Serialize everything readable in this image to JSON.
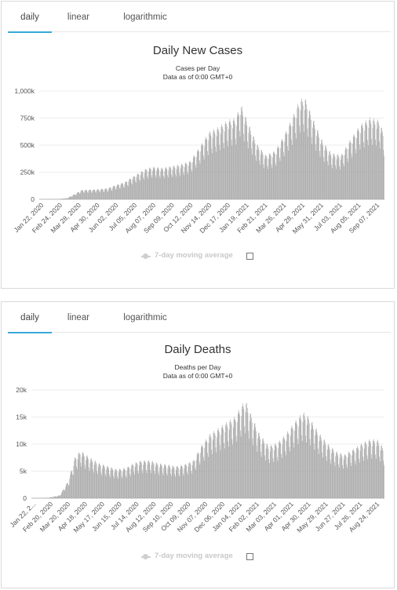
{
  "panels": [
    {
      "tabs": [
        {
          "label": "daily",
          "active": true
        },
        {
          "label": "linear",
          "active": false
        },
        {
          "label": "logarithmic",
          "active": false
        }
      ],
      "legend": {
        "label": "7-day moving average",
        "checked": false
      },
      "chart_data": {
        "type": "bar",
        "title": "Daily New Cases",
        "subtitle_lines": [
          "Cases per Day",
          "Data as of 0:00 GMT+0"
        ],
        "y_ticks": [
          {
            "value": 0,
            "label": "0"
          },
          {
            "value": 250000,
            "label": "250k"
          },
          {
            "value": 500000,
            "label": "500k"
          },
          {
            "value": 750000,
            "label": "750k"
          },
          {
            "value": 1000000,
            "label": "1,000k"
          }
        ],
        "ylim": [
          0,
          1000000
        ],
        "x_tick_labels": [
          "Jan 22, 2020",
          "Feb 24, 2020",
          "Mar 28, 2020",
          "Apr 30, 2020",
          "Jun 02, 2020",
          "Jul 05, 2020",
          "Aug 07, 2020",
          "Sep 09, 2020",
          "Oct 12, 2020",
          "Nov 14, 2020",
          "Dec 17, 2020",
          "Jan 19, 2021",
          "Feb 21, 2021",
          "Mar 26, 2021",
          "Apr 28, 2021",
          "May 31, 2021",
          "Jul 03, 2021",
          "Aug 05, 2021",
          "Sep 07, 2021"
        ],
        "x_range": [
          "2020-01-22",
          "2021-09-16"
        ],
        "trend_points": [
          [
            "2020-01-22",
            500
          ],
          [
            "2020-02-12",
            2000
          ],
          [
            "2020-02-24",
            3000
          ],
          [
            "2020-03-10",
            10000
          ],
          [
            "2020-03-20",
            35000
          ],
          [
            "2020-04-05",
            80000
          ],
          [
            "2020-04-30",
            85000
          ],
          [
            "2020-05-20",
            95000
          ],
          [
            "2020-06-02",
            120000
          ],
          [
            "2020-06-20",
            150000
          ],
          [
            "2020-07-05",
            200000
          ],
          [
            "2020-07-25",
            260000
          ],
          [
            "2020-08-07",
            280000
          ],
          [
            "2020-08-25",
            270000
          ],
          [
            "2020-09-09",
            285000
          ],
          [
            "2020-09-25",
            300000
          ],
          [
            "2020-10-12",
            330000
          ],
          [
            "2020-10-28",
            450000
          ],
          [
            "2020-11-14",
            580000
          ],
          [
            "2020-11-30",
            620000
          ],
          [
            "2020-12-17",
            680000
          ],
          [
            "2020-12-31",
            700000
          ],
          [
            "2021-01-08",
            820000
          ],
          [
            "2021-01-19",
            680000
          ],
          [
            "2021-02-05",
            480000
          ],
          [
            "2021-02-21",
            380000
          ],
          [
            "2021-03-10",
            420000
          ],
          [
            "2021-03-26",
            560000
          ],
          [
            "2021-04-10",
            720000
          ],
          [
            "2021-04-22",
            860000
          ],
          [
            "2021-05-01",
            870000
          ],
          [
            "2021-05-12",
            720000
          ],
          [
            "2021-05-31",
            500000
          ],
          [
            "2021-06-15",
            400000
          ],
          [
            "2021-07-03",
            380000
          ],
          [
            "2021-07-20",
            520000
          ],
          [
            "2021-08-05",
            640000
          ],
          [
            "2021-08-22",
            700000
          ],
          [
            "2021-09-07",
            680000
          ],
          [
            "2021-09-16",
            560000
          ]
        ]
      }
    },
    {
      "tabs": [
        {
          "label": "daily",
          "active": true
        },
        {
          "label": "linear",
          "active": false
        },
        {
          "label": "logarithmic",
          "active": false
        }
      ],
      "legend": {
        "label": "7-day moving average",
        "checked": false
      },
      "chart_data": {
        "type": "bar",
        "title": "Daily Deaths",
        "subtitle_lines": [
          "Deaths per Day",
          "Data as of 0:00 GMT+0"
        ],
        "y_ticks": [
          {
            "value": 0,
            "label": "0"
          },
          {
            "value": 5000,
            "label": "5k"
          },
          {
            "value": 10000,
            "label": "10k"
          },
          {
            "value": 15000,
            "label": "15k"
          },
          {
            "value": 20000,
            "label": "20k"
          }
        ],
        "ylim": [
          0,
          20000
        ],
        "x_tick_labels": [
          "Jan 22, 2...",
          "Feb 20, 2020",
          "Mar 20, 2020",
          "Apr 18, 2020",
          "May 17, 2020",
          "Jun 15, 2020",
          "Jul 14, 2020",
          "Aug 12, 2020",
          "Sep 10, 2020",
          "Oct 09, 2020",
          "Nov 07, 2020",
          "Dec 06, 2020",
          "Jan 04, 2021",
          "Feb 02, 2021",
          "Mar 03, 2021",
          "Apr 01, 2021",
          "Apr 30, 2021",
          "May 29, 2021",
          "Jun 27, 2021",
          "Jul 26, 2021",
          "Aug 24, 2021"
        ],
        "x_range": [
          "2020-01-22",
          "2021-09-16"
        ],
        "trend_points": [
          [
            "2020-01-22",
            20
          ],
          [
            "2020-02-20",
            100
          ],
          [
            "2020-03-10",
            500
          ],
          [
            "2020-03-25",
            3000
          ],
          [
            "2020-04-05",
            7000
          ],
          [
            "2020-04-15",
            8200
          ],
          [
            "2020-04-30",
            7000
          ],
          [
            "2020-05-17",
            6000
          ],
          [
            "2020-06-01",
            5500
          ],
          [
            "2020-06-15",
            5000
          ],
          [
            "2020-07-01",
            5200
          ],
          [
            "2020-07-14",
            6000
          ],
          [
            "2020-07-28",
            6500
          ],
          [
            "2020-08-12",
            6500
          ],
          [
            "2020-08-26",
            6000
          ],
          [
            "2020-09-10",
            5800
          ],
          [
            "2020-09-25",
            5500
          ],
          [
            "2020-10-09",
            5800
          ],
          [
            "2020-10-25",
            6500
          ],
          [
            "2020-11-07",
            9000
          ],
          [
            "2020-11-22",
            11000
          ],
          [
            "2020-12-06",
            12000
          ],
          [
            "2020-12-20",
            13000
          ],
          [
            "2021-01-04",
            14000
          ],
          [
            "2021-01-15",
            16000
          ],
          [
            "2021-01-22",
            16800
          ],
          [
            "2021-02-02",
            14000
          ],
          [
            "2021-02-15",
            11000
          ],
          [
            "2021-03-03",
            9000
          ],
          [
            "2021-03-17",
            9500
          ],
          [
            "2021-04-01",
            11000
          ],
          [
            "2021-04-15",
            13000
          ],
          [
            "2021-04-30",
            14800
          ],
          [
            "2021-05-10",
            14000
          ],
          [
            "2021-05-29",
            11000
          ],
          [
            "2021-06-15",
            9000
          ],
          [
            "2021-06-27",
            8000
          ],
          [
            "2021-07-10",
            7500
          ],
          [
            "2021-07-26",
            8500
          ],
          [
            "2021-08-10",
            9500
          ],
          [
            "2021-08-24",
            10200
          ],
          [
            "2021-09-05",
            10000
          ],
          [
            "2021-09-16",
            8500
          ]
        ]
      }
    }
  ]
}
